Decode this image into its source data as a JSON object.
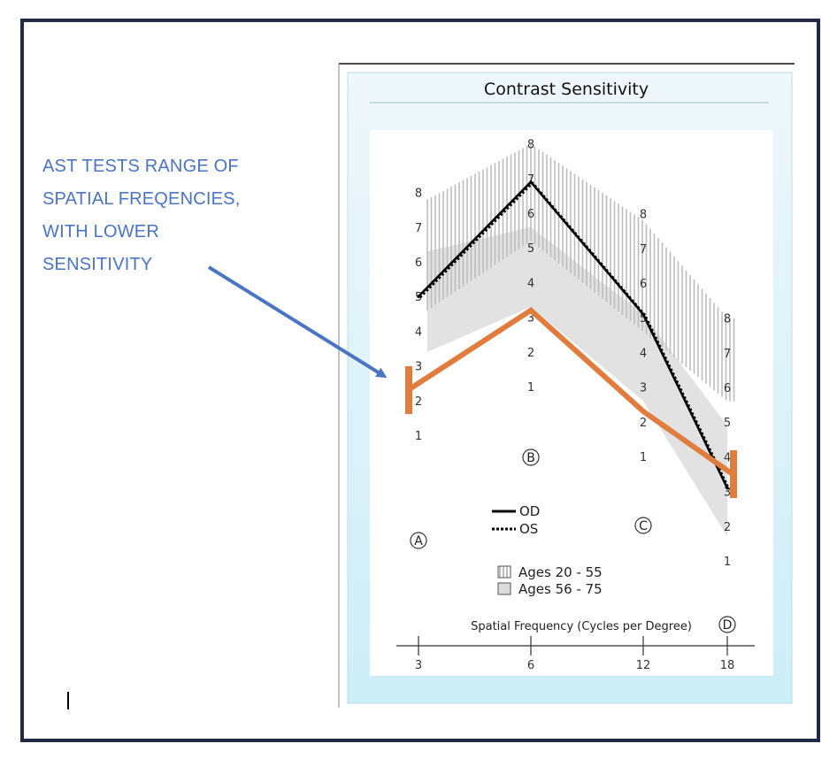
{
  "annotation": {
    "lines": [
      "AST TESTS RANGE OF",
      "SPATIAL FREQENCIES,",
      "WITH LOWER",
      "SENSITIVITY"
    ]
  },
  "colors": {
    "annotation": "#4a74c4",
    "highlight": "#e07c3c",
    "frame": "#1f2a44",
    "panel_bg": "#d8eef5",
    "normal_band_young": "#c8c8c8",
    "normal_band_old": "#e2e2e2"
  },
  "chart_data": {
    "type": "line",
    "title": "Contrast Sensitivity",
    "xlabel": "Spatial Frequency (Cycles per Degree)",
    "x": [
      3,
      6,
      12,
      18
    ],
    "x_tick_labels": [
      "3",
      "6",
      "12",
      "18"
    ],
    "row_markers": [
      "A",
      "B",
      "C",
      "D"
    ],
    "patch_scales": [
      [
        "1",
        "2",
        "3",
        "4",
        "5",
        "6",
        "7",
        "8"
      ],
      [
        "1",
        "2",
        "3",
        "4",
        "5",
        "6",
        "7",
        "8"
      ],
      [
        "1",
        "2",
        "3",
        "4",
        "5",
        "6",
        "7",
        "8"
      ],
      [
        "1",
        "2",
        "3",
        "4",
        "5",
        "6",
        "7",
        "8"
      ]
    ],
    "ylim": [
      1,
      8
    ],
    "series": [
      {
        "name": "OD",
        "style": "solid",
        "values": [
          5.0,
          6.9,
          5.1,
          3.1
        ]
      },
      {
        "name": "OS",
        "style": "dotted",
        "values": [
          5.0,
          6.9,
          5.1,
          3.1
        ]
      },
      {
        "style": "highlight",
        "values": [
          2.3,
          3.2,
          2.3,
          3.5
        ]
      }
    ],
    "normal_ranges": [
      {
        "name": "Ages 20 - 55",
        "pattern": "vertical-hatch",
        "lower": [
          4.6,
          5.2,
          4.6,
          5.6
        ],
        "upper": [
          7.8,
          8.0,
          7.8,
          8.0
        ]
      },
      {
        "name": "Ages 56 - 75",
        "pattern": "solid-gray",
        "lower": [
          3.4,
          3.3,
          2.6,
          1.7
        ],
        "upper": [
          6.3,
          5.6,
          5.1,
          4.9
        ]
      }
    ],
    "legend": {
      "lines": [
        "OD",
        "OS"
      ],
      "ranges": [
        "Ages 20 - 55",
        "Ages 56 - 75"
      ]
    },
    "grid": false
  }
}
